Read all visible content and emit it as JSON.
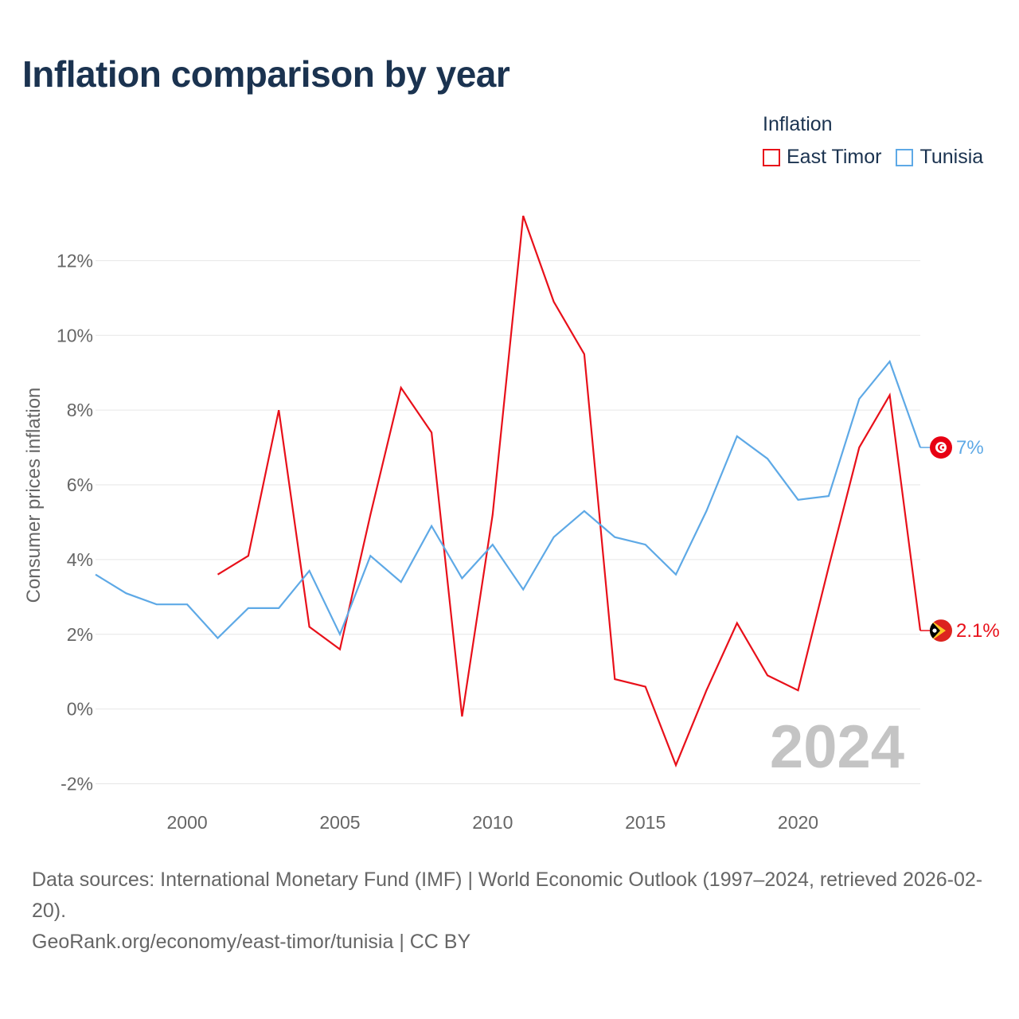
{
  "chart_data": {
    "type": "line",
    "title": "Inflation comparison by year",
    "xlabel": "",
    "ylabel": "Consumer prices inflation",
    "legend_title": "Inflation",
    "legend_position": "top-right",
    "xlim": [
      1997,
      2024
    ],
    "ylim": [
      -2.5,
      13.5
    ],
    "x_ticks": [
      2000,
      2005,
      2010,
      2015,
      2020
    ],
    "y_ticks": [
      -2,
      0,
      2,
      4,
      6,
      8,
      10,
      12
    ],
    "y_tick_suffix": "%",
    "grid": true,
    "watermark_year": "2024",
    "series": [
      {
        "name": "East Timor",
        "color": "#e8101a",
        "end_label": "2.1%",
        "flag_icon": "east-timor-flag-icon",
        "x": [
          2001,
          2002,
          2003,
          2004,
          2005,
          2006,
          2007,
          2008,
          2009,
          2010,
          2011,
          2012,
          2013,
          2014,
          2015,
          2016,
          2017,
          2018,
          2019,
          2020,
          2021,
          2022,
          2023,
          2024
        ],
        "values": [
          3.6,
          4.1,
          8.0,
          2.2,
          1.6,
          5.2,
          8.6,
          7.4,
          -0.2,
          5.2,
          13.2,
          10.9,
          9.5,
          0.8,
          0.6,
          -1.5,
          0.5,
          2.3,
          0.9,
          0.5,
          3.8,
          7.0,
          8.4,
          2.1
        ]
      },
      {
        "name": "Tunisia",
        "color": "#5ea9e6",
        "end_label": "7%",
        "flag_icon": "tunisia-flag-icon",
        "x": [
          1997,
          1998,
          1999,
          2000,
          2001,
          2002,
          2003,
          2004,
          2005,
          2006,
          2007,
          2008,
          2009,
          2010,
          2011,
          2012,
          2013,
          2014,
          2015,
          2016,
          2017,
          2018,
          2019,
          2020,
          2021,
          2022,
          2023,
          2024
        ],
        "values": [
          3.6,
          3.1,
          2.8,
          2.8,
          1.9,
          2.7,
          2.7,
          3.7,
          2.0,
          4.1,
          3.4,
          4.9,
          3.5,
          4.4,
          3.2,
          4.6,
          5.3,
          4.6,
          4.4,
          3.6,
          5.3,
          7.3,
          6.7,
          5.6,
          5.7,
          8.3,
          9.3,
          7.0
        ]
      }
    ]
  },
  "footer": {
    "source": "Data sources: International Monetary Fund (IMF) | World Economic Outlook (1997–2024, retrieved 2026-02-20).",
    "credit": "GeoRank.org/economy/east-timor/tunisia | CC BY"
  }
}
